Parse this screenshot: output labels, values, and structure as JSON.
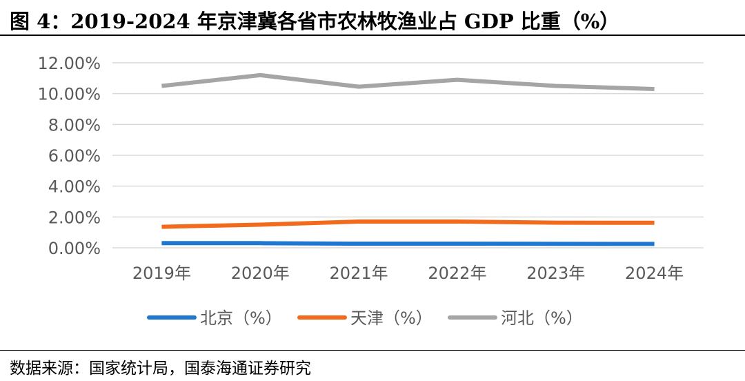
{
  "figure": {
    "title": "图 4：2019-2024 年京津冀各省市农林牧渔业占 GDP 比重（%）",
    "source": "数据来源：国家统计局，国泰海通证券研究"
  },
  "chart_data": {
    "type": "line",
    "title": "",
    "xlabel": "",
    "ylabel": "",
    "categories": [
      "2019年",
      "2020年",
      "2021年",
      "2022年",
      "2023年",
      "2024年"
    ],
    "y_ticks": [
      "0.00%",
      "2.00%",
      "4.00%",
      "6.00%",
      "8.00%",
      "10.00%",
      "12.00%"
    ],
    "ylim": [
      0,
      12
    ],
    "grid": true,
    "legend_position": "bottom",
    "series": [
      {
        "name": "北京（%）",
        "color": "#1f77d0",
        "values": [
          0.3,
          0.3,
          0.27,
          0.27,
          0.26,
          0.25
        ]
      },
      {
        "name": "天津（%）",
        "color": "#f26b1d",
        "values": [
          1.36,
          1.5,
          1.7,
          1.7,
          1.63,
          1.62
        ]
      },
      {
        "name": "河北（%）",
        "color": "#a5a5a5",
        "values": [
          10.5,
          11.2,
          10.45,
          10.9,
          10.5,
          10.3
        ]
      }
    ]
  }
}
